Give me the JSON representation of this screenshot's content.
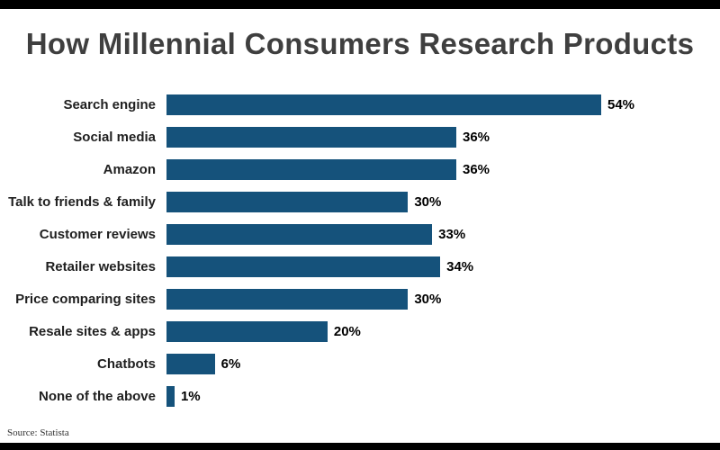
{
  "page": {
    "title": "How Millennial Consumers Research Products",
    "source": "Source: Statista"
  },
  "colors": {
    "bar": "#15527b",
    "title_text": "#3f3f3f",
    "frame": "#000000"
  },
  "chart_data": {
    "type": "bar",
    "orientation": "horizontal",
    "title": "How Millennial Consumers Research Products",
    "categories": [
      "Search engine",
      "Social media",
      "Amazon",
      "Talk to friends & family",
      "Customer reviews",
      "Retailer websites",
      "Price comparing sites",
      "Resale sites & apps",
      "Chatbots",
      "None of the above"
    ],
    "values": [
      54,
      36,
      36,
      30,
      33,
      34,
      30,
      20,
      6,
      1
    ],
    "value_suffix": "%",
    "xlabel": "",
    "ylabel": "",
    "xlim": [
      0,
      54
    ],
    "grid": false,
    "legend": false,
    "data_labels": true,
    "source": "Source: Statista"
  }
}
